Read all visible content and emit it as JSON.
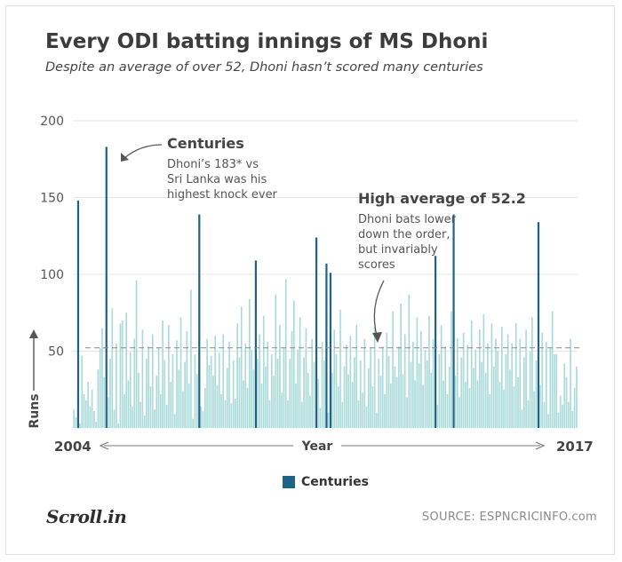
{
  "header": {
    "title": "Every ODI batting innings of MS Dhoni",
    "subtitle": "Despite an average of over 52, Dhoni hasn’t scored many centuries"
  },
  "colors": {
    "century": "#1f6285",
    "innings": "#a9dad9",
    "grid": "#e6e6e6",
    "average_line": "#888888",
    "arrow": "#555555"
  },
  "annotations": {
    "centuries": {
      "title": "Centuries",
      "lines": [
        "Dhoni’s 183* vs",
        "Sri Lanka was his",
        "highest knock ever"
      ]
    },
    "average": {
      "title": "High average of 52.2",
      "lines": [
        "Dhoni bats lower",
        "down the order,",
        "but invariably",
        "scores"
      ]
    }
  },
  "legend": {
    "label": "Centuries"
  },
  "footer": {
    "logo": "Scroll.in",
    "source": "SOURCE: ESPNCRICINFO.com"
  },
  "chart_data": {
    "type": "bar",
    "title": "Every ODI batting innings of MS Dhoni",
    "ylabel": "Runs",
    "xlabel": "Year",
    "x_start_label": "2004",
    "x_end_label": "2017",
    "ylim": [
      0,
      200
    ],
    "yticks": [
      50,
      100,
      150,
      200
    ],
    "grid": true,
    "average": 52.2,
    "innings_count": 250,
    "innings_runs": [
      12,
      7,
      148,
      3,
      47,
      22,
      18,
      30,
      14,
      25,
      11,
      4,
      38,
      52,
      65,
      33,
      183,
      20,
      45,
      78,
      12,
      55,
      3,
      68,
      70,
      22,
      75,
      31,
      49,
      14,
      58,
      96,
      36,
      17,
      64,
      8,
      45,
      53,
      27,
      61,
      12,
      34,
      52,
      22,
      70,
      44,
      15,
      67,
      30,
      48,
      9,
      57,
      38,
      72,
      24,
      43,
      63,
      29,
      90,
      6,
      48,
      35,
      139,
      14,
      11,
      26,
      58,
      41,
      47,
      34,
      60,
      28,
      49,
      22,
      61,
      18,
      39,
      56,
      16,
      44,
      19,
      68,
      46,
      79,
      31,
      55,
      26,
      84,
      51,
      38,
      109,
      45,
      61,
      29,
      73,
      40,
      56,
      18,
      48,
      34,
      87,
      45,
      67,
      23,
      52,
      97,
      18,
      45,
      63,
      83,
      29,
      51,
      72,
      17,
      46,
      65,
      36,
      21,
      58,
      43,
      124,
      32,
      13,
      56,
      44,
      107,
      10,
      101,
      36,
      64,
      48,
      27,
      77,
      17,
      40,
      54,
      35,
      60,
      30,
      46,
      67,
      18,
      44,
      23,
      58,
      14,
      39,
      52,
      27,
      66,
      10,
      45,
      34,
      53,
      22,
      62,
      47,
      29,
      76,
      40,
      33,
      53,
      81,
      35,
      61,
      20,
      87,
      43,
      56,
      31,
      72,
      42,
      63,
      28,
      51,
      44,
      73,
      36,
      58,
      112,
      15,
      48,
      67,
      31,
      53,
      22,
      40,
      76,
      139,
      34,
      58,
      20,
      46,
      62,
      30,
      54,
      26,
      70,
      39,
      51,
      31,
      64,
      43,
      74,
      36,
      55,
      22,
      68,
      40,
      58,
      50,
      30,
      66,
      25,
      48,
      61,
      38,
      55,
      27,
      68,
      33,
      58,
      12,
      46,
      64,
      18,
      50,
      72,
      24,
      44,
      134,
      28,
      62,
      17,
      56,
      9,
      52,
      76,
      48,
      48,
      10,
      21,
      15,
      42,
      33,
      17,
      58,
      11,
      26,
      40
    ]
  }
}
